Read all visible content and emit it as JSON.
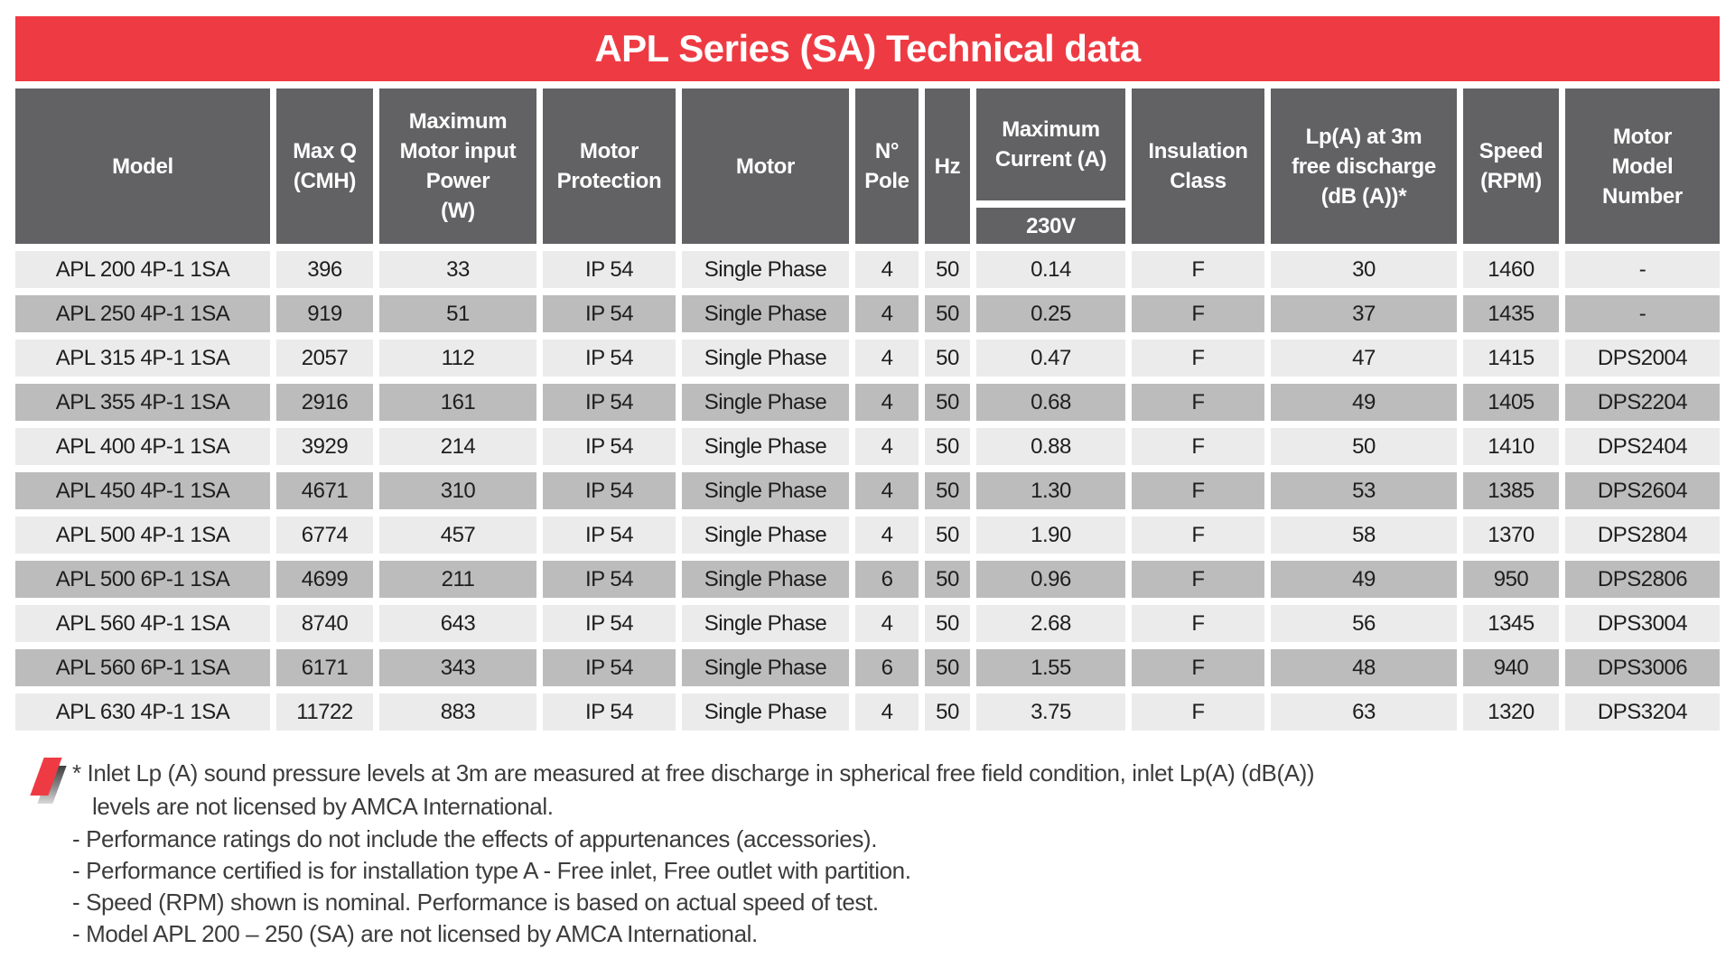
{
  "title": "APL Series (SA) Technical data",
  "colors": {
    "accent-red": "#ee3b43",
    "header-gray": "#626264",
    "row-light": "#ebebeb",
    "row-dark": "#bcbcbc",
    "cell-text": "#1e1e1e",
    "note-text": "#3c3c3c"
  },
  "table": {
    "headers": [
      {
        "label": "Model"
      },
      {
        "label": "Max Q\n(CMH)"
      },
      {
        "label": "Maximum\nMotor input\nPower\n(W)"
      },
      {
        "label": "Motor\nProtection"
      },
      {
        "label": "Motor"
      },
      {
        "label": "N°\nPole"
      },
      {
        "label": "Hz"
      },
      {
        "label": "Maximum\nCurrent (A)",
        "sub": "230V"
      },
      {
        "label": "Insulation\nClass"
      },
      {
        "label": "Lp(A) at 3m\nfree discharge\n(dB (A))*"
      },
      {
        "label": "Speed\n(RPM)"
      },
      {
        "label": "Motor\nModel\nNumber"
      }
    ],
    "rows": [
      [
        "APL 200 4P-1 1SA",
        "396",
        "33",
        "IP 54",
        "Single Phase",
        "4",
        "50",
        "0.14",
        "F",
        "30",
        "1460",
        "-"
      ],
      [
        "APL 250 4P-1 1SA",
        "919",
        "51",
        "IP 54",
        "Single Phase",
        "4",
        "50",
        "0.25",
        "F",
        "37",
        "1435",
        "-"
      ],
      [
        "APL 315 4P-1 1SA",
        "2057",
        "112",
        "IP 54",
        "Single Phase",
        "4",
        "50",
        "0.47",
        "F",
        "47",
        "1415",
        "DPS2004"
      ],
      [
        "APL 355 4P-1 1SA",
        "2916",
        "161",
        "IP 54",
        "Single Phase",
        "4",
        "50",
        "0.68",
        "F",
        "49",
        "1405",
        "DPS2204"
      ],
      [
        "APL 400 4P-1 1SA",
        "3929",
        "214",
        "IP 54",
        "Single Phase",
        "4",
        "50",
        "0.88",
        "F",
        "50",
        "1410",
        "DPS2404"
      ],
      [
        "APL 450 4P-1 1SA",
        "4671",
        "310",
        "IP 54",
        "Single Phase",
        "4",
        "50",
        "1.30",
        "F",
        "53",
        "1385",
        "DPS2604"
      ],
      [
        "APL 500 4P-1 1SA",
        "6774",
        "457",
        "IP 54",
        "Single Phase",
        "4",
        "50",
        "1.90",
        "F",
        "58",
        "1370",
        "DPS2804"
      ],
      [
        "APL 500 6P-1 1SA",
        "4699",
        "211",
        "IP 54",
        "Single Phase",
        "6",
        "50",
        "0.96",
        "F",
        "49",
        "950",
        "DPS2806"
      ],
      [
        "APL 560 4P-1 1SA",
        "8740",
        "643",
        "IP 54",
        "Single Phase",
        "4",
        "50",
        "2.68",
        "F",
        "56",
        "1345",
        "DPS3004"
      ],
      [
        "APL 560 6P-1 1SA",
        "6171",
        "343",
        "IP 54",
        "Single Phase",
        "6",
        "50",
        "1.55",
        "F",
        "48",
        "940",
        "DPS3006"
      ],
      [
        "APL 630 4P-1 1SA",
        "11722",
        "883",
        "IP 54",
        "Single Phase",
        "4",
        "50",
        "3.75",
        "F",
        "63",
        "1320",
        "DPS3204"
      ]
    ]
  },
  "notes": {
    "lines": [
      "* Inlet Lp (A) sound pressure levels at 3m are measured at free discharge in spherical free field condition, inlet Lp(A) (dB(A))",
      "levels are not licensed by AMCA International.",
      "- Performance ratings do not include the effects of appurtenances (accessories).",
      "- Performance certified is for installation type A - Free inlet, Free outlet with partition.",
      "- Speed (RPM) shown is nominal. Performance is based on actual speed of test.",
      "- Model APL 200 – 250 (SA) are not licensed by AMCA International."
    ]
  }
}
